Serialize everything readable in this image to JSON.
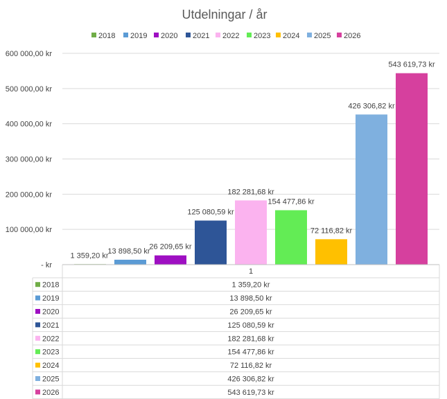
{
  "chart_data": {
    "type": "bar",
    "title": "Utdelningar / år",
    "xlabel": "",
    "ylabel": "",
    "category": "1",
    "ylim": [
      0,
      600000
    ],
    "y_ticks": [
      {
        "value": 0,
        "label": "-   kr"
      },
      {
        "value": 100000,
        "label": "100 000,00 kr"
      },
      {
        "value": 200000,
        "label": "200 000,00 kr"
      },
      {
        "value": 300000,
        "label": "300 000,00 kr"
      },
      {
        "value": 400000,
        "label": "400 000,00 kr"
      },
      {
        "value": 500000,
        "label": "500 000,00 kr"
      },
      {
        "value": 600000,
        "label": "600 000,00 kr"
      }
    ],
    "grid": true,
    "legend_position": "top",
    "data_table": true,
    "series": [
      {
        "name": "2018",
        "value": 1359.2,
        "label": "1 359,20 kr",
        "color": "#70ad47"
      },
      {
        "name": "2019",
        "value": 13898.5,
        "label": "13 898,50 kr",
        "color": "#5b9bd5"
      },
      {
        "name": "2020",
        "value": 26209.65,
        "label": "26 209,65 kr",
        "color": "#9e0fc2"
      },
      {
        "name": "2021",
        "value": 125080.59,
        "label": "125 080,59 kr",
        "color": "#2e5597"
      },
      {
        "name": "2022",
        "value": 182281.68,
        "label": "182 281,68 kr",
        "color": "#fbb3ef"
      },
      {
        "name": "2023",
        "value": 154477.86,
        "label": "154 477,86 kr",
        "color": "#63ec55"
      },
      {
        "name": "2024",
        "value": 72116.82,
        "label": "72 116,82 kr",
        "color": "#ffc000"
      },
      {
        "name": "2025",
        "value": 426306.82,
        "label": "426 306,82 kr",
        "color": "#7fb0df"
      },
      {
        "name": "2026",
        "value": 543619.73,
        "label": "543 619,73 kr",
        "color": "#d6409e"
      }
    ]
  }
}
